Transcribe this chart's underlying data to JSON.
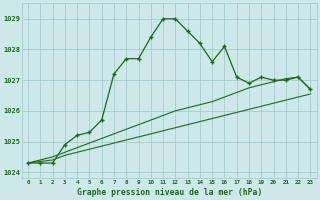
{
  "title": "Graphe pression niveau de la mer (hPa)",
  "bg_color": "#cce8e8",
  "line_color": "#1a6b1a",
  "x_labels": [
    "0",
    "1",
    "2",
    "3",
    "4",
    "5",
    "6",
    "7",
    "8",
    "9",
    "10",
    "11",
    "12",
    "13",
    "14",
    "15",
    "16",
    "17",
    "18",
    "19",
    "20",
    "21",
    "22",
    "23"
  ],
  "ylim": [
    1023.8,
    1029.5
  ],
  "yticks": [
    1024,
    1025,
    1026,
    1027,
    1028,
    1029
  ],
  "series1": [
    1024.3,
    1024.3,
    1024.3,
    1024.9,
    1025.2,
    1025.3,
    1025.7,
    1027.2,
    1027.7,
    1027.7,
    1028.4,
    1029.0,
    1029.0,
    1028.6,
    1028.2,
    1027.6,
    1028.1,
    1027.1,
    1026.9,
    1027.1,
    1027.0,
    1027.0,
    1027.1,
    1026.7
  ],
  "series2": [
    1024.3,
    1024.35,
    1024.4,
    1024.55,
    1024.65,
    1024.75,
    1024.85,
    1024.95,
    1025.05,
    1025.15,
    1025.25,
    1025.35,
    1025.45,
    1025.55,
    1025.65,
    1025.75,
    1025.85,
    1025.95,
    1026.05,
    1026.15,
    1026.25,
    1026.35,
    1026.45,
    1026.55
  ],
  "series3": [
    1024.3,
    1024.4,
    1024.5,
    1024.65,
    1024.8,
    1024.95,
    1025.1,
    1025.25,
    1025.4,
    1025.55,
    1025.7,
    1025.85,
    1026.0,
    1026.1,
    1026.2,
    1026.3,
    1026.45,
    1026.6,
    1026.75,
    1026.85,
    1026.95,
    1027.05,
    1027.1,
    1026.7
  ]
}
